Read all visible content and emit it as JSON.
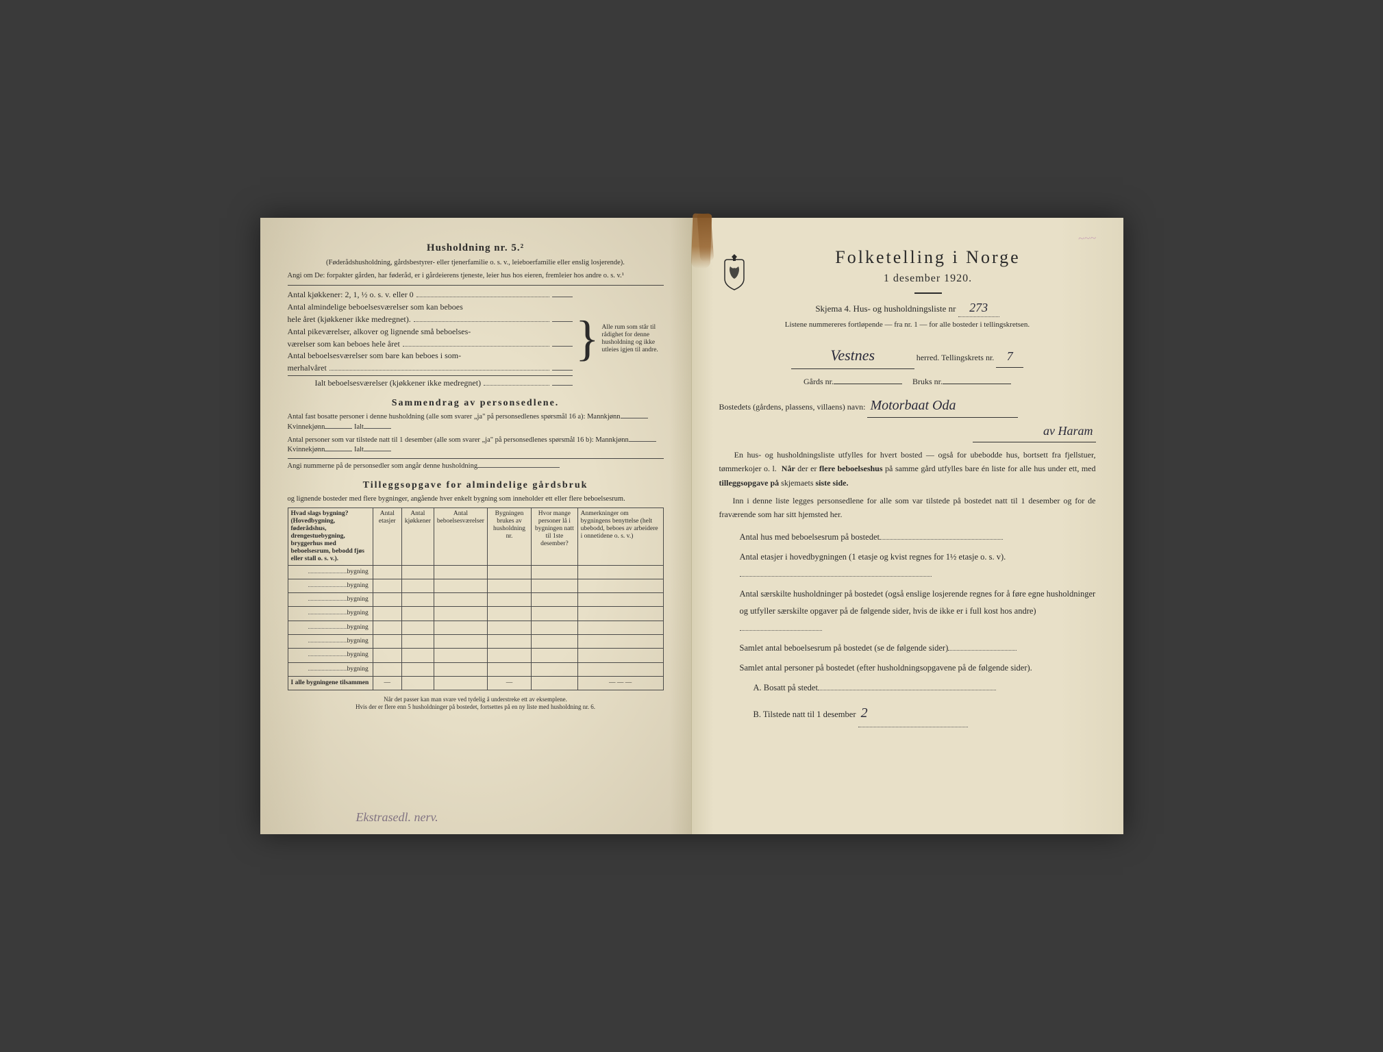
{
  "colors": {
    "paper": "#e8e0c8",
    "paper_edge": "#d8d0b4",
    "ink": "#2a2a2a",
    "handwriting": "#2a2a3a",
    "stain": "#8a5a2a",
    "stamp": "#a050a0"
  },
  "left": {
    "heading": "Husholdning nr. 5.²",
    "sub1": "(Føderådshusholdning, gårdsbestyrer- eller tjenerfamilie o. s. v., leieboerfamilie eller enslig losjerende).",
    "sub2": "Angi om De: forpakter gården, har føderåd, er i gårdeierens tjeneste, leier hus hos eieren, fremleier hos andre o. s. v.¹",
    "rooms": {
      "r1": "Antal kjøkkener: 2, 1, ½ o. s. v. eller 0",
      "r2a": "Antal almindelige beboelsesværelser som kan beboes",
      "r2b": "hele året (kjøkkener ikke medregnet).",
      "r3a": "Antal pikeværelser, alkover og lignende små beboelses-",
      "r3b": "værelser som kan beboes hele året",
      "r4a": "Antal beboelsesværelser som bare kan beboes i som-",
      "r4b": "merhalvåret",
      "total": "Ialt beboelsesværelser  (kjøkkener ikke medregnet)",
      "brace_text": "Alle rum som står til rådighet for denne husholdning og ikke utleies igjen til andre."
    },
    "summary": {
      "heading": "Sammendrag av personsedlene.",
      "l1": "Antal fast bosatte personer i denne husholdning (alle som svarer „ja\" på personsedlenes spørsmål 16 a): Mannkjønn",
      "l1b": "Kvinnekjønn",
      "l1c": "Ialt",
      "l2": "Antal personer som var tilstede natt til 1 desember (alle som svarer „ja\" på personsedlenes spørsmål 16 b): Mannkjønn",
      "l3": "Angi nummerne på de personsedler som angår denne husholdning"
    },
    "tillegg": {
      "heading": "Tilleggsopgave for almindelige gårdsbruk",
      "sub": "og lignende bosteder med flere bygninger, angående hver enkelt bygning som inneholder ett eller flere beboelsesrum.",
      "cols": {
        "c1": "Hvad slags bygning?\n(Hovedbygning, føderådshus, drengestuebygning, bryggerhus med beboelsesrum, bebodd fjøs eller stall o. s. v.).",
        "c2": "Antal etasjer",
        "c3": "Antal kjøkkener",
        "c4": "Antal beboelsesværelser",
        "c5": "Bygningen brukes av husholdning nr.",
        "c6": "Hvor mange personer lå i bygningen natt til 1ste desember?",
        "c7": "Anmerkninger om bygningens benyttelse (helt ubebodd, beboes av arbeidere i onnetidene o. s. v.)"
      },
      "row_label": "bygning",
      "total_row": "I alle bygningene tilsammen",
      "row_count": 8
    },
    "footnote": "Når det passer kan man svare ved tydelig å understreke ett av eksemplene.\nHvis der er flere enn 5 husholdninger på bostedet, fortsettes på en ny liste med husholdning nr. 6.",
    "handwritten_bottom": "Ekstrasedl. nerv."
  },
  "right": {
    "stamp": "~~~",
    "title": "Folketelling i Norge",
    "date": "1 desember 1920.",
    "schema_line": "Skjema 4.   Hus- og husholdningsliste nr",
    "schema_nr_hw": "273",
    "list_note": "Listene nummereres fortløpende — fra nr. 1 — for alle bosteder i tellingskretsen.",
    "herred_hw": "Vestnes",
    "herred_label": "herred.   Tellingskrets nr.",
    "krets_hw": "7",
    "gards_label": "Gårds nr.",
    "bruks_label": "Bruks nr.",
    "bosted_label": "Bostedets (gårdens, plassens, villaens) navn:",
    "bosted_hw": "Motorbaat Oda",
    "bosted_hw2": "av Haram",
    "para1": "En hus- og husholdningsliste utfylles for hvert bosted — også for ubebodde hus, bortsett fra fjellstuer, tømmerkojer o. l.  Når der er flere beboelseshus på samme gård utfylles bare én liste for alle hus under ett, med tilleggsopgave på skjemaets siste side.",
    "para2": "Inn i denne liste legges personsedlene for alle som var tilstede på bostedet natt til 1 desember og for de fraværende som har sitt hjemsted her.",
    "q1": "Antal hus med beboelsesrum på bostedet",
    "q2": "Antal etasjer i hovedbygningen (1 etasje og kvist regnes for 1½ etasje o. s. v).",
    "q3": "Antal særskilte husholdninger på bostedet (også enslige losjerende regnes for å føre egne husholdninger og utfyller særskilte opgaver på de følgende sider, hvis de ikke er i full kost hos andre)",
    "q4": "Samlet antal beboelsesrum på bostedet (se de følgende sider)",
    "q5": "Samlet antal personer på bostedet (efter husholdningsopgavene på de følgende sider).",
    "qA": "A.  Bosatt på stedet",
    "qB": "B.  Tilstede natt til 1 desember",
    "qB_hw": "2"
  }
}
